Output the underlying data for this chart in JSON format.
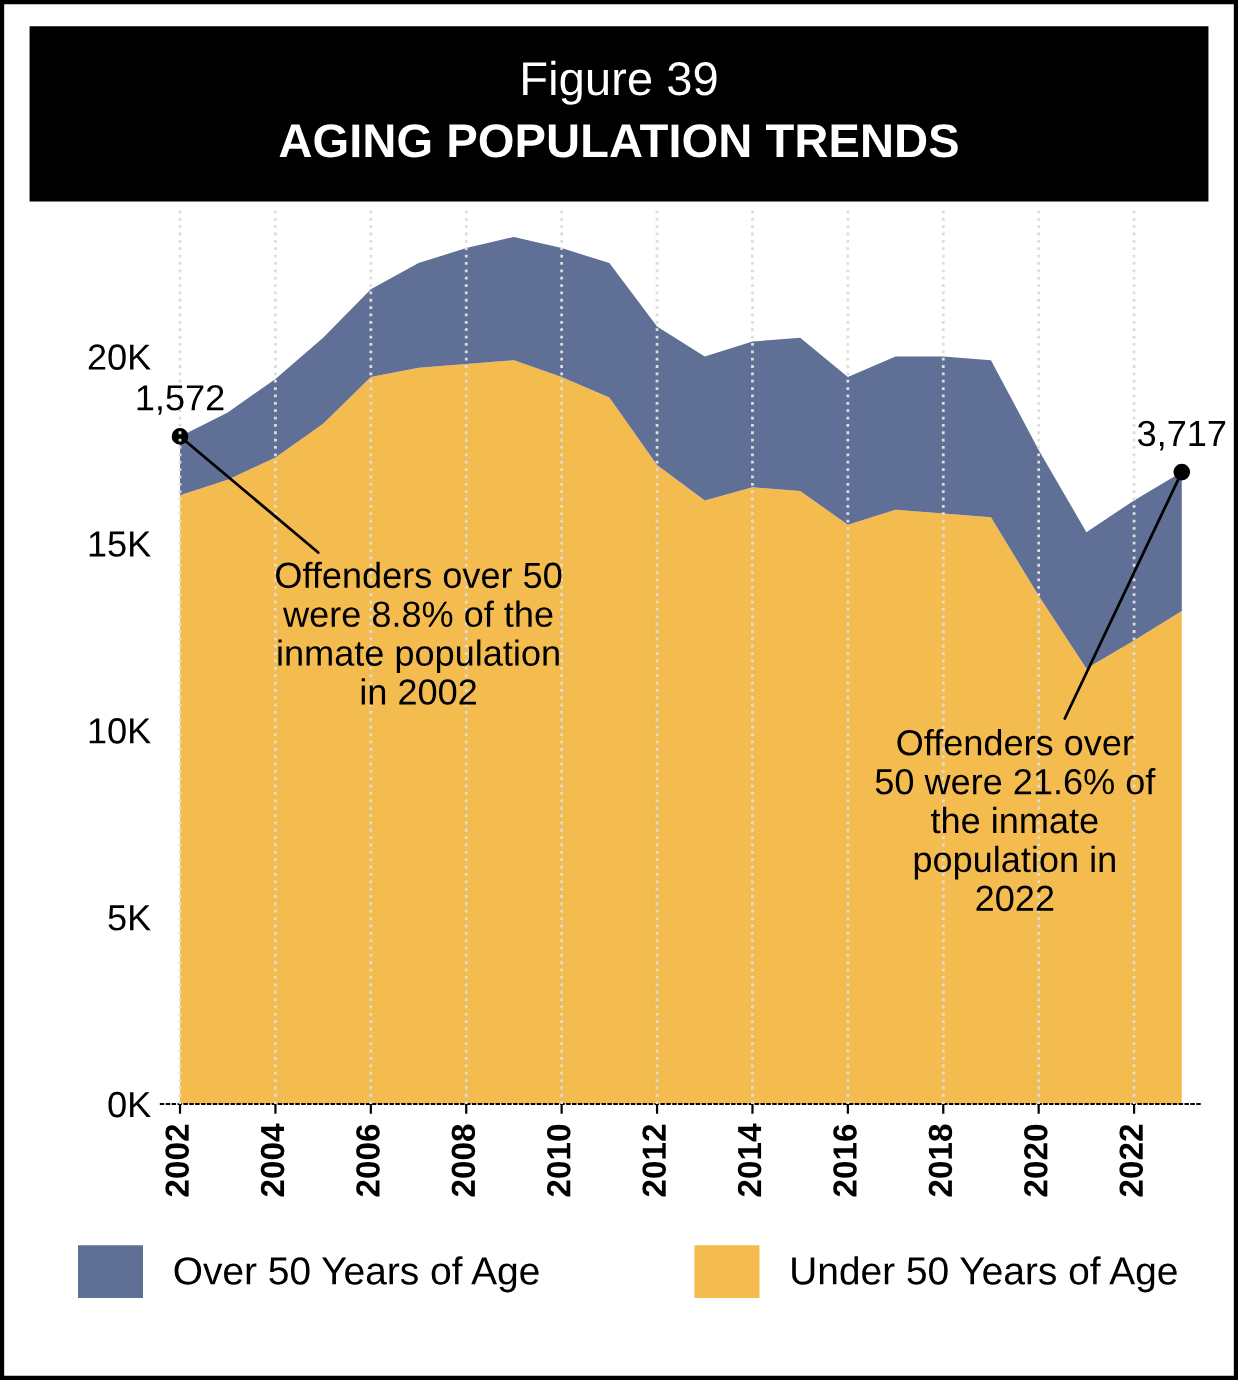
{
  "chart_data": {
    "type": "area",
    "stacked": true,
    "title": "Figure 39",
    "subtitle": "AGING POPULATION TRENDS",
    "x": [
      2002,
      2003,
      2004,
      2005,
      2006,
      2007,
      2008,
      2009,
      2010,
      2011,
      2012,
      2013,
      2014,
      2015,
      2016,
      2017,
      2018,
      2019,
      2020,
      2021,
      2022,
      2023
    ],
    "series": [
      {
        "name": "Under 50 Years of Age",
        "color": "#f4bb4f",
        "values": [
          16290,
          16700,
          17300,
          18200,
          19450,
          19700,
          19800,
          19900,
          19450,
          18900,
          17100,
          16150,
          16500,
          16400,
          15500,
          15900,
          15800,
          15700,
          13600,
          11650,
          12400,
          13190
        ]
      },
      {
        "name": "Over 50 Years of Age",
        "color": "#5f6f96",
        "values": [
          1572,
          1800,
          2100,
          2300,
          2350,
          2800,
          3100,
          3300,
          3450,
          3600,
          3700,
          3850,
          3900,
          4100,
          3950,
          4100,
          4200,
          4200,
          3900,
          3650,
          3750,
          3717
        ],
        "value_labels": [
          "1,572",
          null,
          null,
          null,
          null,
          null,
          null,
          null,
          null,
          null,
          null,
          null,
          null,
          null,
          null,
          null,
          null,
          null,
          null,
          null,
          null,
          "3,717"
        ]
      }
    ],
    "xlim": [
      2001.6,
      2023.4
    ],
    "xticks": [
      2002,
      2004,
      2006,
      2008,
      2010,
      2012,
      2014,
      2016,
      2018,
      2020,
      2022
    ],
    "ylim": [
      0,
      24000
    ],
    "yticks": [
      {
        "value": 0,
        "label": "0K"
      },
      {
        "value": 5000,
        "label": "5K"
      },
      {
        "value": 10000,
        "label": "10K"
      },
      {
        "value": 15000,
        "label": "15K"
      },
      {
        "value": 20000,
        "label": "20K"
      }
    ],
    "grid": "x",
    "legend": "bottom",
    "annotations": [
      {
        "text": "Offenders over 50\nwere 8.8% of the\ninmate population\nin 2002",
        "x": 2002,
        "y": 17862
      },
      {
        "text": "Offenders over\n50 were 21.6% of\nthe inmate\npopulation in\n2022",
        "x": 2023,
        "y": 16907
      }
    ]
  }
}
